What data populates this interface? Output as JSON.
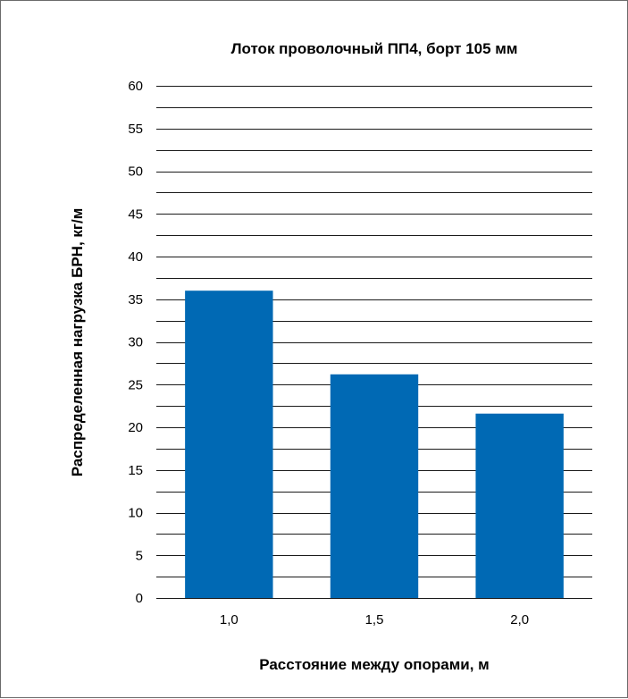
{
  "chart_data": {
    "type": "bar",
    "title": "Лоток проволочный ПП4, борт 105 мм",
    "xlabel": "Расстояние между опорами, м",
    "ylabel": "Распределенная нагрузка БРН, кг/м",
    "categories": [
      "1,0",
      "1,5",
      "2,0"
    ],
    "values": [
      36,
      26.2,
      21.6
    ],
    "ylim": [
      0,
      60
    ],
    "major_ticks": [
      0,
      5,
      10,
      15,
      20,
      25,
      30,
      35,
      40,
      45,
      50,
      55,
      60
    ],
    "grid_step": 2.5,
    "grid": true,
    "legend": "none",
    "bar_color": "#0069b4"
  }
}
